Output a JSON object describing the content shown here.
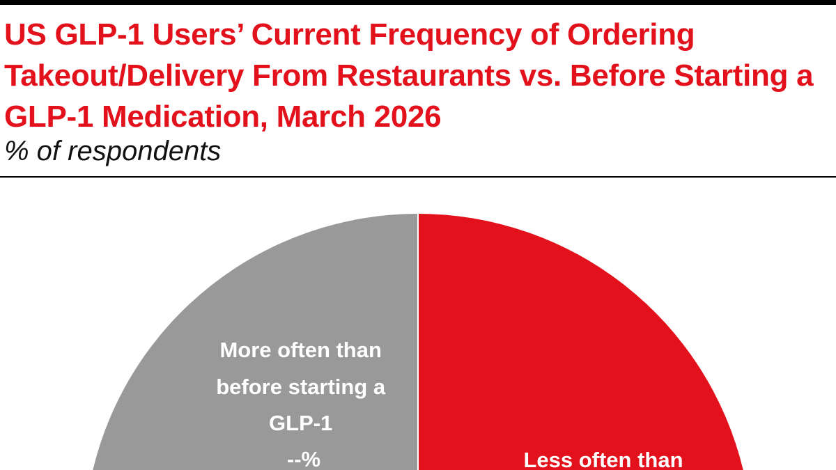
{
  "title": "US GLP-1 Users’ Current Frequency of Ordering Takeout/Delivery From Restaurants vs. Before Starting a GLP-1 Medication, March 2026",
  "subtitle": "% of respondents",
  "colors": {
    "title": "#e3111b",
    "accent": "#e3111b",
    "gray": "#999999",
    "rule": "#000000"
  },
  "chart_data": {
    "type": "pie",
    "title": "US GLP-1 Users’ Current Frequency of Ordering Takeout/Delivery From Restaurants vs. Before Starting a GLP-1 Medication, March 2026",
    "subtitle": "% of respondents",
    "slices": [
      {
        "label_lines": [
          "More often than",
          "before starting a",
          "GLP-1",
          "--%"
        ],
        "value_label": "--%",
        "color": "#999999"
      },
      {
        "label_lines": [
          "Less often than"
        ],
        "color": "#e3111b"
      }
    ]
  }
}
